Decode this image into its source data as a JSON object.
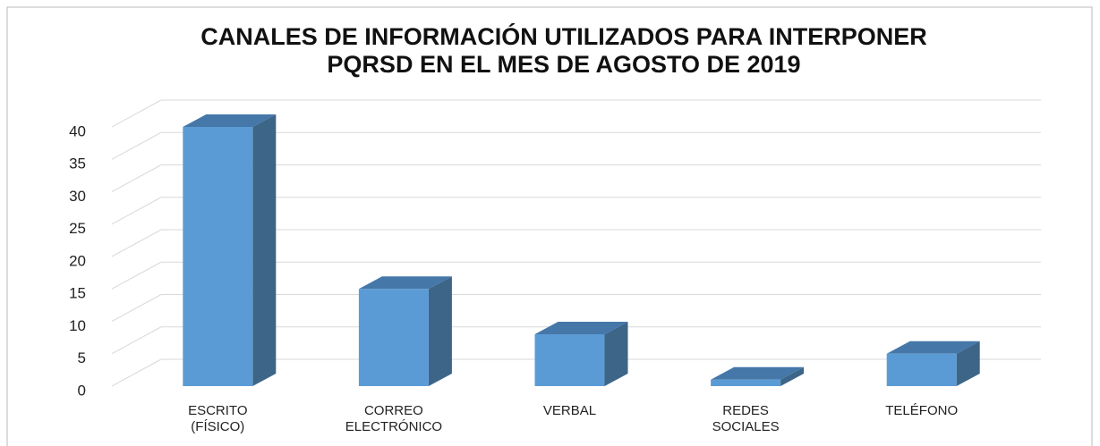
{
  "chart_data": {
    "type": "bar3d",
    "title": "CANALES DE INFORMACIÓN UTILIZADOS PARA INTERPONER PQRSD EN EL MES DE AGOSTO DE 2019",
    "categories": [
      "ESCRITO (FÍSICO)",
      "CORREO ELECTRÓNICO",
      "VERBAL",
      "REDES SOCIALES",
      "TELÉFONO"
    ],
    "values": [
      40,
      15,
      8,
      1,
      5
    ],
    "color": "#5b9bd5",
    "ylim": [
      0,
      40
    ],
    "yticks": [
      0,
      5,
      10,
      15,
      20,
      25,
      30,
      35,
      40
    ],
    "grid": true
  }
}
